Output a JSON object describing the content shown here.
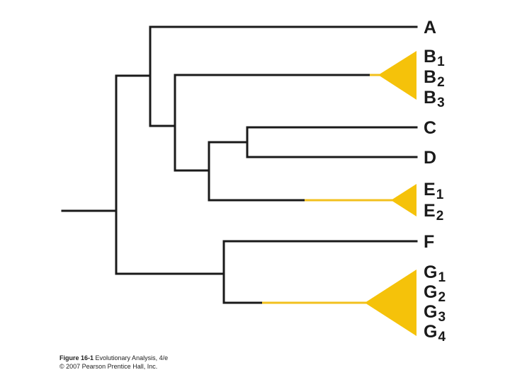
{
  "tree": {
    "taxa": {
      "A": "A",
      "B1": {
        "letter": "B",
        "sub": "1"
      },
      "B2": {
        "letter": "B",
        "sub": "2"
      },
      "B3": {
        "letter": "B",
        "sub": "3"
      },
      "C": "C",
      "D": "D",
      "E1": {
        "letter": "E",
        "sub": "1"
      },
      "E2": {
        "letter": "E",
        "sub": "2"
      },
      "F": "F",
      "G1": {
        "letter": "G",
        "sub": "1"
      },
      "G2": {
        "letter": "G",
        "sub": "2"
      },
      "G3": {
        "letter": "G",
        "sub": "3"
      },
      "G4": {
        "letter": "G",
        "sub": "4"
      }
    },
    "colors": {
      "branch": "#1a1a1a",
      "highlight": "#f5c20a"
    }
  },
  "caption": {
    "figure": "Figure 16-1",
    "book": "Evolutionary Analysis, 4/e",
    "copyright": "© 2007 Pearson Prentice Hall, Inc."
  }
}
